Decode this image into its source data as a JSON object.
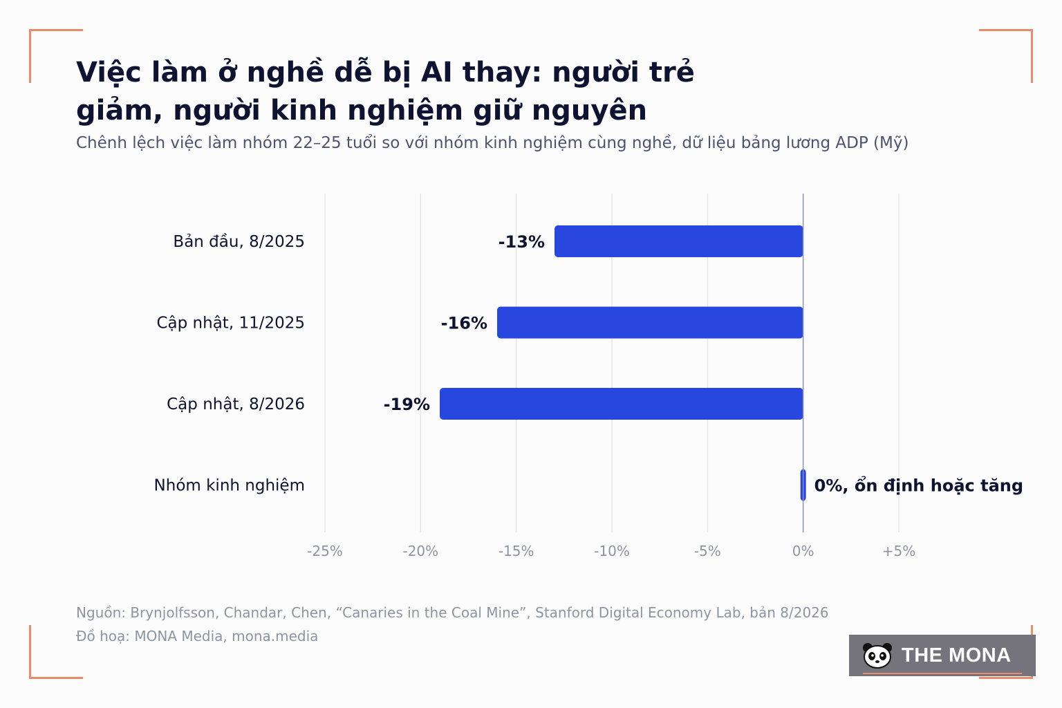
{
  "title": "Việc làm ở nghề dễ bị AI thay: người trẻ giảm, người kinh nghiệm giữ nguyên",
  "subtitle": "Chênh lệch việc làm nhóm 22–25 tuổi so với nhóm kinh nghiệm cùng nghề, dữ liệu bảng lương ADP (Mỹ)",
  "source": {
    "line1": "Nguồn: Brynjolfsson, Chandar, Chen, “Canaries in the Coal Mine”, Stanford Digital Economy Lab, bản 8/2026",
    "line2": "Đồ hoạ: MONA Media, mona.media"
  },
  "badge": {
    "brand": "THE MONA",
    "icon": "panda-icon"
  },
  "colors": {
    "bar": "#2847df",
    "accent": "#ec8a6a",
    "grid": "#e4e6ea",
    "zero_line": "#8a90b0",
    "badge_bg": "#75737c"
  },
  "chart_data": {
    "type": "bar",
    "orientation": "horizontal",
    "categories": [
      "Bản đầu, 8/2025",
      "Cập nhật, 11/2025",
      "Cập nhật, 8/2026",
      "Nhóm kinh nghiệm"
    ],
    "values": [
      -13,
      -16,
      -19,
      0
    ],
    "data_labels": [
      "-13%",
      "-16%",
      "-19%",
      "0%, ổn định hoặc tăng"
    ],
    "xlim": [
      -25,
      5
    ],
    "x_ticks": [
      -25,
      -20,
      -15,
      -10,
      -5,
      0,
      5
    ],
    "x_tick_labels": [
      "-25%",
      "-20%",
      "-15%",
      "-10%",
      "-5%",
      "0%",
      "+5%"
    ],
    "grid": true,
    "legend": "none"
  }
}
